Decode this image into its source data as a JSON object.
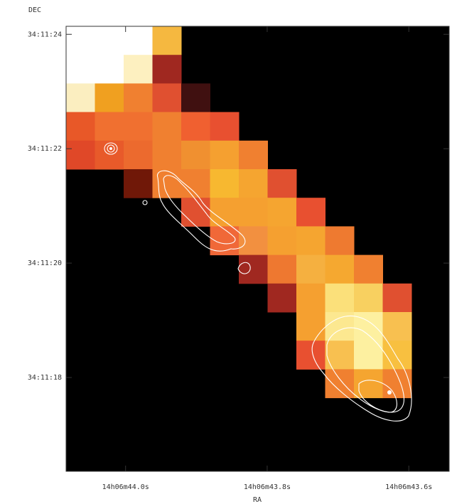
{
  "chart_data": {
    "type": "image",
    "xlabel": "RA",
    "ylabel": "DEC",
    "xlim": [
      44.084,
      43.543
    ],
    "xticks": [
      {
        "value": 44.0,
        "label": "14h06m44.0s"
      },
      {
        "value": 43.8,
        "label": "14h06m43.8s"
      },
      {
        "value": 43.6,
        "label": "14h06m43.6s"
      }
    ],
    "ylim": [
      16.36,
      24.14
    ],
    "yticks": [
      {
        "value": 24,
        "label": "34:11:24"
      },
      {
        "value": 22,
        "label": "34:11:22"
      },
      {
        "value": 20,
        "label": "34:11:20"
      },
      {
        "value": 18,
        "label": "34:11:18"
      }
    ]
  }
}
